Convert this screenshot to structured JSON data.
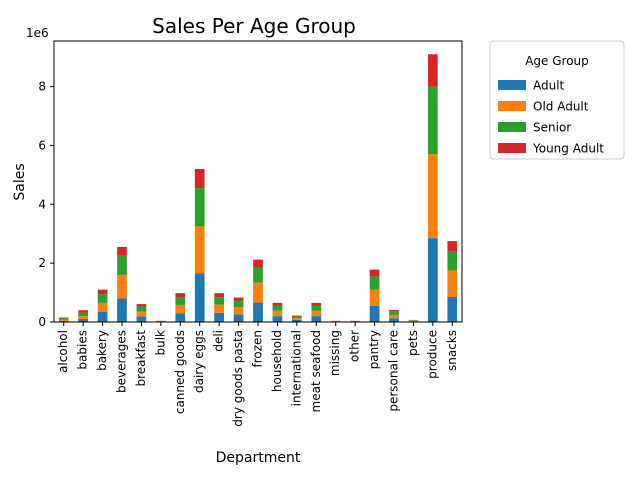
{
  "chart_data": {
    "type": "bar",
    "stacked": true,
    "title": "Sales Per Age Group",
    "xlabel": "Department",
    "ylabel": "Sales",
    "offset_text": "1e6",
    "ylim": [
      0,
      9.55
    ],
    "yticks": [
      0,
      2,
      4,
      6,
      8
    ],
    "legend": {
      "title": "Age Group",
      "placement": "outside-right-top"
    },
    "categories": [
      "alcohol",
      "babies",
      "bakery",
      "beverages",
      "breakfast",
      "bulk",
      "canned goods",
      "dairy eggs",
      "deli",
      "dry goods pasta",
      "frozen",
      "household",
      "international",
      "meat seafood",
      "missing",
      "other",
      "pantry",
      "personal care",
      "pets",
      "produce",
      "snacks"
    ],
    "series": [
      {
        "name": "Adult",
        "color": "#1f77b4",
        "values": [
          0.04,
          0.1,
          0.35,
          0.8,
          0.19,
          0.01,
          0.3,
          1.65,
          0.31,
          0.26,
          0.66,
          0.2,
          0.07,
          0.2,
          0.01,
          0.01,
          0.55,
          0.13,
          0.02,
          2.85,
          0.85
        ]
      },
      {
        "name": "Old Adult",
        "color": "#ff7f0e",
        "values": [
          0.04,
          0.1,
          0.3,
          0.8,
          0.17,
          0.01,
          0.28,
          1.6,
          0.28,
          0.25,
          0.68,
          0.18,
          0.06,
          0.18,
          0.01,
          0.01,
          0.55,
          0.11,
          0.02,
          2.85,
          0.9
        ]
      },
      {
        "name": "Senior",
        "color": "#2ca02c",
        "values": [
          0.04,
          0.12,
          0.3,
          0.65,
          0.17,
          0.01,
          0.27,
          1.3,
          0.25,
          0.22,
          0.5,
          0.18,
          0.06,
          0.18,
          0.01,
          0.01,
          0.45,
          0.11,
          0.02,
          2.3,
          0.65
        ]
      },
      {
        "name": "Young Adult",
        "color": "#d62728",
        "values": [
          0.03,
          0.08,
          0.15,
          0.3,
          0.08,
          0.01,
          0.13,
          0.65,
          0.14,
          0.1,
          0.28,
          0.09,
          0.03,
          0.09,
          0.01,
          0.01,
          0.23,
          0.06,
          0.01,
          1.1,
          0.35
        ]
      }
    ]
  }
}
